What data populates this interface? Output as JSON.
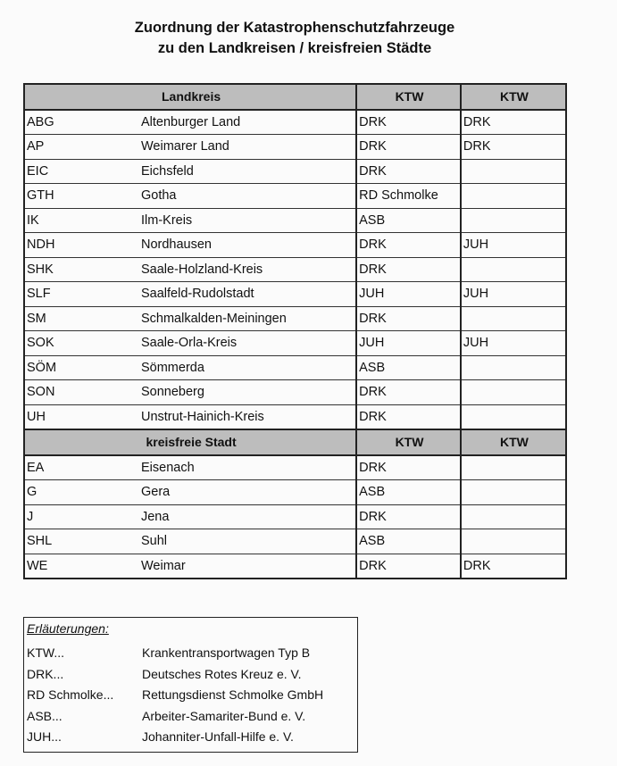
{
  "title": [
    "Zuordnung der Katastrophenschutzfahrzeuge",
    "zu den Landkreisen / kreisfreien Städte"
  ],
  "sections": [
    {
      "header": {
        "label": "Landkreis",
        "col1": "KTW",
        "col2": "KTW"
      },
      "rows": [
        {
          "code": "ABG",
          "name": "Altenburger Land",
          "ktw1": "DRK",
          "ktw2": "DRK"
        },
        {
          "code": "AP",
          "name": "Weimarer Land",
          "ktw1": "DRK",
          "ktw2": "DRK"
        },
        {
          "code": "EIC",
          "name": "Eichsfeld",
          "ktw1": "DRK",
          "ktw2": ""
        },
        {
          "code": "GTH",
          "name": "Gotha",
          "ktw1": "RD Schmolke",
          "ktw2": ""
        },
        {
          "code": "IK",
          "name": "Ilm-Kreis",
          "ktw1": "ASB",
          "ktw2": ""
        },
        {
          "code": "NDH",
          "name": "Nordhausen",
          "ktw1": "DRK",
          "ktw2": "JUH"
        },
        {
          "code": "SHK",
          "name": "Saale-Holzland-Kreis",
          "ktw1": "DRK",
          "ktw2": ""
        },
        {
          "code": "SLF",
          "name": "Saalfeld-Rudolstadt",
          "ktw1": "JUH",
          "ktw2": "JUH"
        },
        {
          "code": "SM",
          "name": "Schmalkalden-Meiningen",
          "ktw1": "DRK",
          "ktw2": ""
        },
        {
          "code": "SOK",
          "name": "Saale-Orla-Kreis",
          "ktw1": "JUH",
          "ktw2": "JUH"
        },
        {
          "code": "SÖM",
          "name": "Sömmerda",
          "ktw1": "ASB",
          "ktw2": ""
        },
        {
          "code": "SON",
          "name": "Sonneberg",
          "ktw1": "DRK",
          "ktw2": ""
        },
        {
          "code": "UH",
          "name": "Unstrut-Hainich-Kreis",
          "ktw1": "DRK",
          "ktw2": ""
        }
      ]
    },
    {
      "header": {
        "label": "kreisfreie Stadt",
        "col1": "KTW",
        "col2": "KTW"
      },
      "rows": [
        {
          "code": "EA",
          "name": "Eisenach",
          "ktw1": "DRK",
          "ktw2": ""
        },
        {
          "code": "G",
          "name": "Gera",
          "ktw1": "ASB",
          "ktw2": ""
        },
        {
          "code": "J",
          "name": "Jena",
          "ktw1": "DRK",
          "ktw2": ""
        },
        {
          "code": "SHL",
          "name": "Suhl",
          "ktw1": "ASB",
          "ktw2": ""
        },
        {
          "code": "WE",
          "name": "Weimar",
          "ktw1": "DRK",
          "ktw2": "DRK"
        }
      ]
    }
  ],
  "legend": {
    "title": "Erläuterungen:",
    "items": [
      {
        "abbr": "KTW...",
        "meaning": "Krankentransportwagen Typ B"
      },
      {
        "abbr": "DRK...",
        "meaning": "Deutsches Rotes Kreuz e. V."
      },
      {
        "abbr": "RD Schmolke...",
        "meaning": "Rettungsdienst Schmolke GmbH"
      },
      {
        "abbr": "ASB...",
        "meaning": "Arbeiter-Samariter-Bund e. V."
      },
      {
        "abbr": "JUH...",
        "meaning": "Johanniter-Unfall-Hilfe e. V."
      }
    ]
  },
  "colors": {
    "header_bg": "#bdbdbd",
    "border": "#222222"
  }
}
